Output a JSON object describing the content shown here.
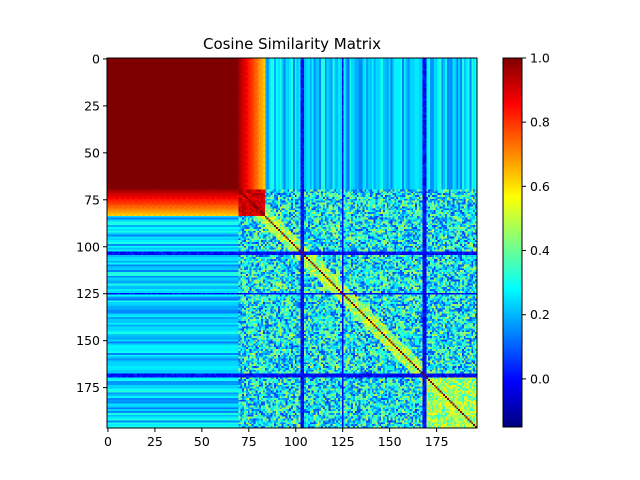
{
  "chart_data": {
    "type": "heatmap",
    "title": "Cosine Similarity Matrix",
    "xlabel": "",
    "ylabel": "",
    "matrix_size": 197,
    "x_ticks": [
      0,
      25,
      50,
      75,
      100,
      125,
      150,
      175
    ],
    "y_ticks": [
      0,
      25,
      50,
      75,
      100,
      125,
      150,
      175
    ],
    "x_tick_labels": [
      "0",
      "25",
      "50",
      "75",
      "100",
      "125",
      "150",
      "175"
    ],
    "y_tick_labels": [
      "0",
      "25",
      "50",
      "75",
      "100",
      "125",
      "150",
      "175"
    ],
    "colormap": "jet",
    "colorbar": {
      "min": -0.15,
      "max": 1.0,
      "ticks": [
        0.0,
        0.2,
        0.4,
        0.6,
        0.8,
        1.0
      ],
      "tick_labels": [
        "0.0",
        "0.2",
        "0.4",
        "0.6",
        "0.8",
        "1.0"
      ]
    },
    "blocks": {
      "high_similarity_block_end": 70,
      "transition_band_end": 84,
      "low_similarity_rows": [
        103,
        104,
        168
      ],
      "low_similarity_cols": [
        103,
        104,
        125,
        169
      ],
      "diagonal_value": 1.0
    },
    "grid": false
  },
  "colors": {
    "jet_stops": [
      "#00007f",
      "#0000ff",
      "#007fff",
      "#00ffff",
      "#7fff7f",
      "#ffff00",
      "#ff7f00",
      "#ff0000",
      "#7f0000"
    ]
  }
}
